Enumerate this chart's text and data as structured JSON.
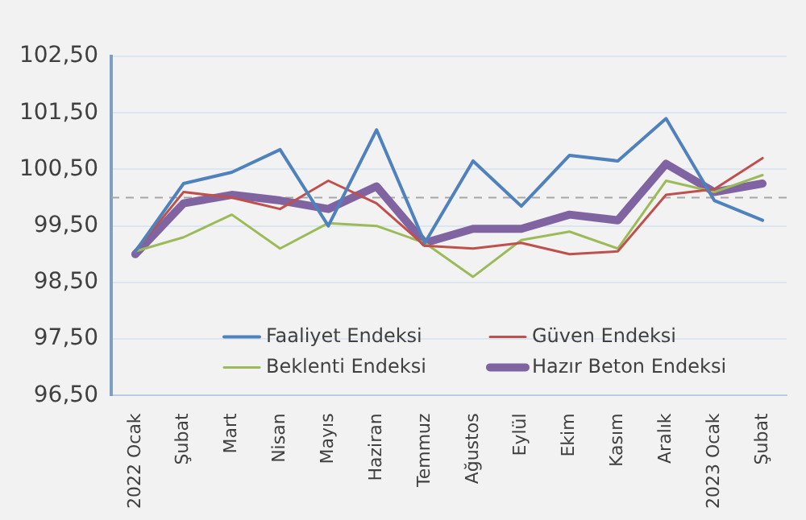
{
  "chart_data": {
    "type": "line",
    "categories": [
      "2022 Ocak",
      "Şubat",
      "Mart",
      "Nisan",
      "Mayıs",
      "Haziran",
      "Temmuz",
      "Ağustos",
      "Eylül",
      "Ekim",
      "Kasım",
      "Aralık",
      "2023 Ocak",
      "Şubat"
    ],
    "series": [
      {
        "name": "Faaliyet Endeksi",
        "color": "#4f81bd",
        "values": [
          99.05,
          100.25,
          100.45,
          100.85,
          99.5,
          101.2,
          99.2,
          100.65,
          99.85,
          100.75,
          100.65,
          101.4,
          99.95,
          99.6
        ]
      },
      {
        "name": "Güven Endeksi",
        "color": "#c0504d",
        "values": [
          99.05,
          100.1,
          100.0,
          99.8,
          100.3,
          99.9,
          99.15,
          99.1,
          99.2,
          99.0,
          99.05,
          100.05,
          100.15,
          100.7
        ]
      },
      {
        "name": "Beklenti Endeksi",
        "color": "#9bbb59",
        "values": [
          99.05,
          99.3,
          99.7,
          99.1,
          99.55,
          99.5,
          99.2,
          98.6,
          99.25,
          99.4,
          99.1,
          100.3,
          100.1,
          100.4
        ]
      },
      {
        "name": "Hazır Beton Endeksi",
        "color": "#8064a2",
        "values": [
          99.0,
          99.9,
          100.05,
          99.95,
          99.8,
          100.2,
          99.2,
          99.45,
          99.45,
          99.7,
          99.6,
          100.6,
          100.1,
          100.25
        ]
      }
    ],
    "ylim": [
      96.5,
      102.5
    ],
    "yticks": [
      {
        "value": 96.5,
        "label": "96,50"
      },
      {
        "value": 97.5,
        "label": "97,50"
      },
      {
        "value": 98.5,
        "label": "98,50"
      },
      {
        "value": 99.5,
        "label": "99,50"
      },
      {
        "value": 100.5,
        "label": "100,50"
      },
      {
        "value": 101.5,
        "label": "101,50"
      },
      {
        "value": 102.5,
        "label": "102,50"
      }
    ],
    "ref_lines": [
      {
        "axis": "y",
        "value": 100,
        "color": "#a6a6a6",
        "line_style": "dashed"
      }
    ],
    "grid": "y",
    "legend": "bottom",
    "marker": "none",
    "line_style": "solid"
  }
}
